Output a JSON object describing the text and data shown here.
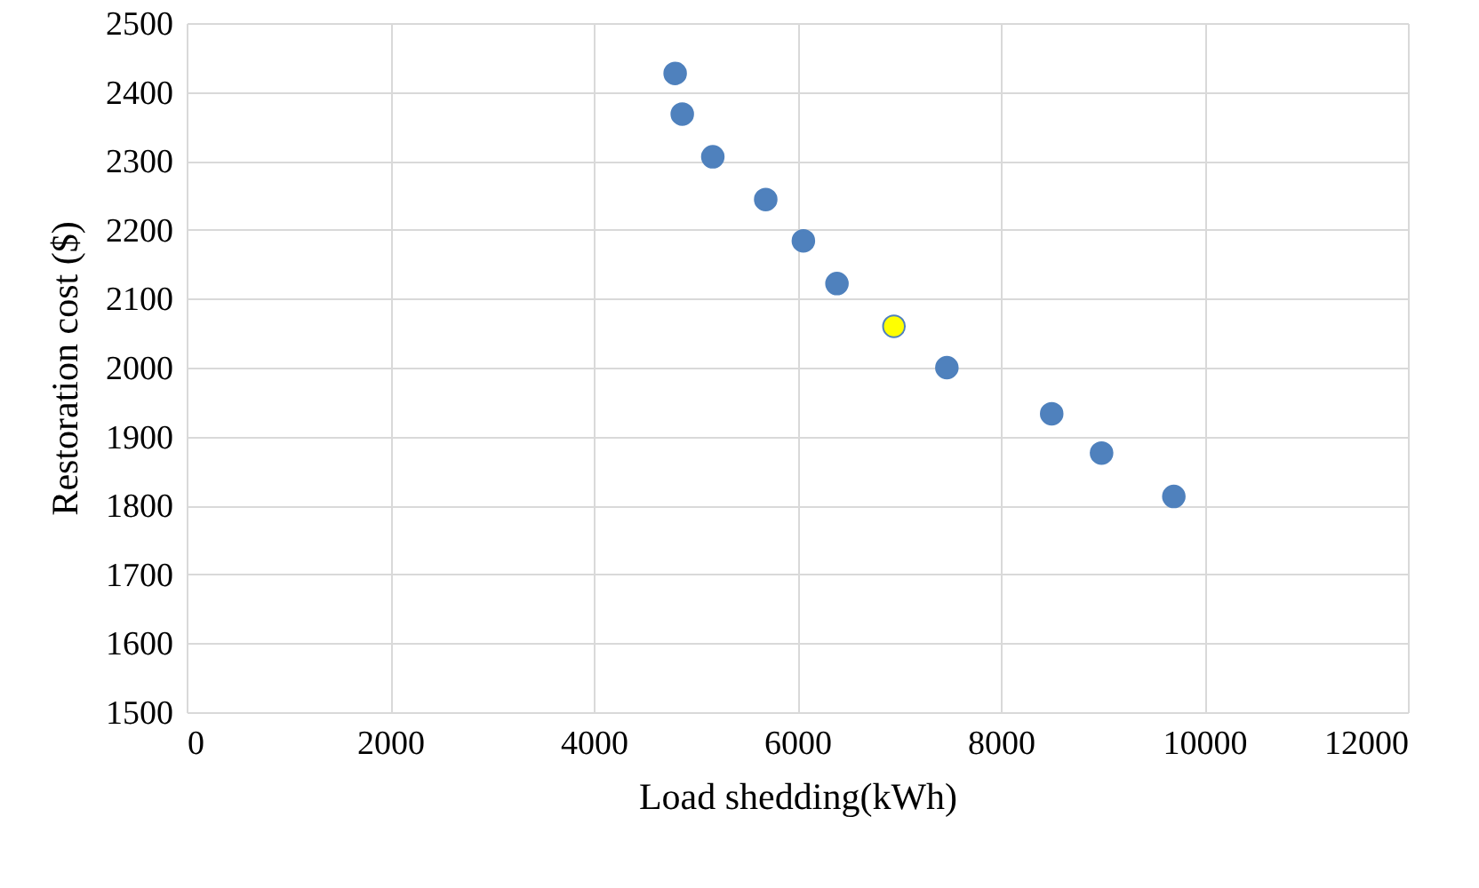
{
  "chart_data": {
    "type": "scatter",
    "xlabel": "Load  shedding(kWh)",
    "ylabel": "Restoration cost ($)",
    "x": [
      4800,
      4870,
      5170,
      5690,
      6060,
      6390,
      6950,
      7470,
      8500,
      8990,
      9700
    ],
    "values": [
      2427,
      2368,
      2306,
      2244,
      2184,
      2122,
      2060,
      2000,
      1933,
      1876,
      1813
    ],
    "colors": [
      "#4f81bd",
      "#4f81bd",
      "#4f81bd",
      "#4f81bd",
      "#4f81bd",
      "#4f81bd",
      "#ffff00",
      "#4f81bd",
      "#4f81bd",
      "#4f81bd",
      "#4f81bd"
    ],
    "xlim": [
      0,
      12000
    ],
    "xticks": [
      0,
      2000,
      4000,
      6000,
      8000,
      10000,
      12000
    ],
    "ylim": [
      1500,
      2500
    ],
    "yticks": [
      1500,
      1600,
      1700,
      1800,
      1900,
      2000,
      2100,
      2200,
      2300,
      2400,
      2500
    ],
    "grid": true,
    "marker": "circle"
  }
}
